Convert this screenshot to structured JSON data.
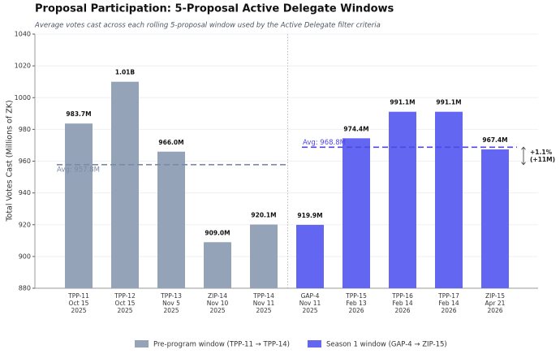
{
  "chart_data": {
    "type": "bar",
    "title": "Proposal Participation: 5-Proposal Active Delegate Windows",
    "subtitle": "Average votes cast across each rolling 5-proposal window used by the Active Delegate filter criteria",
    "y_label": "Total Votes Cast (Millions of ZK)",
    "categories": [
      "TPP-11\nOct 15\n2025",
      "TPP-12\nOct 15\n2025",
      "TPP-13\nNov 5\n2025",
      "ZIP-14\nNov 10\n2025",
      "TPP-14\nNov 11\n2025",
      "GAP-4\nNov 11\n2025",
      "TPP-15\nFeb 13\n2026",
      "TPP-16\nFeb 14\n2026",
      "TPP-17\nFeb 14\n2026",
      "ZIP-15\nApr 21\n2026"
    ],
    "series": [
      {
        "name": "Pre-program window (TPP-11 → TPP-14)",
        "color": "#94a3b8",
        "values": [
          983.7,
          1010,
          966.0,
          909.0,
          920.1,
          null,
          null,
          null,
          null,
          null
        ],
        "value_labels": [
          "983.7M",
          "1.01B",
          "966.0M",
          "909.0M",
          "920.1M",
          null,
          null,
          null,
          null,
          null
        ],
        "average": 957.8,
        "average_label": "Avg: 957.8M",
        "average_color": "#7c8aa3"
      },
      {
        "name": "Season 1 window (GAP-4 → ZIP-15)",
        "color": "#6366f1",
        "values": [
          null,
          null,
          null,
          null,
          null,
          919.9,
          974.4,
          991.1,
          991.1,
          967.4
        ],
        "value_labels": [
          null,
          null,
          null,
          null,
          null,
          "919.9M",
          "974.4M",
          "991.1M",
          "991.1M",
          "967.4M"
        ],
        "average": 968.8,
        "average_label": "Avg: 968.8M",
        "average_color": "#4f46e5"
      }
    ],
    "annotation": [
      "+1.1%",
      "(+11M)"
    ],
    "ylim": [
      880,
      1040
    ],
    "yticks": [
      880,
      900,
      920,
      940,
      960,
      980,
      1000,
      1020,
      1040
    ],
    "grid": true,
    "legend": "bottom"
  }
}
